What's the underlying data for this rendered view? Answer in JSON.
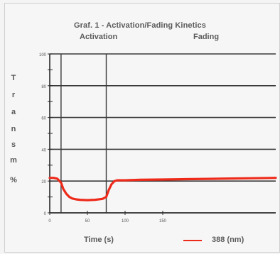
{
  "chart_data": {
    "type": "line",
    "title": "Graf. 1 - Activation/Fading Kinetics",
    "regions": [
      "Activation",
      "Fading"
    ],
    "ylabel_letters": [
      "T",
      "r",
      "a",
      "n",
      "s",
      "m",
      "%"
    ],
    "xlabel": "Time (s)",
    "xlim": [
      0,
      300
    ],
    "ylim": [
      0,
      100
    ],
    "xticks": [
      0,
      50,
      100,
      150
    ],
    "xtick_labels": [
      "0",
      "50",
      "100",
      "150"
    ],
    "yticks": [
      0,
      10,
      20,
      30,
      40,
      50,
      60,
      70,
      80,
      90,
      100
    ],
    "ytick_labels": [
      "0",
      "",
      "20",
      "",
      "40",
      "",
      "60",
      "",
      "80",
      "",
      "100"
    ],
    "grid": "horizontal",
    "vlines": [
      15,
      75
    ],
    "series": [
      {
        "name": "388 (nm)",
        "color": "#ee2a1a",
        "x": [
          0,
          5,
          10,
          15,
          18,
          22,
          26,
          30,
          35,
          40,
          50,
          60,
          70,
          75,
          78,
          82,
          86,
          90,
          100,
          120,
          150,
          180,
          210,
          240,
          270,
          300
        ],
        "y": [
          22,
          22,
          21.5,
          19,
          15,
          12,
          10,
          9,
          8.5,
          8.2,
          8,
          8.2,
          8.8,
          10,
          14,
          18,
          20,
          20.5,
          20.5,
          20.8,
          21,
          21.2,
          21.4,
          21.6,
          21.8,
          22
        ]
      }
    ]
  }
}
